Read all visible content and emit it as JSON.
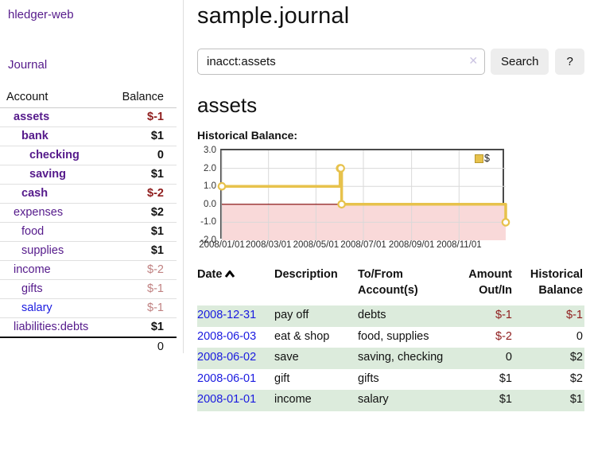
{
  "app": {
    "brand": "hledger-web",
    "nav_journal": "Journal"
  },
  "sidebar": {
    "col_account": "Account",
    "col_balance": "Balance",
    "accounts": [
      {
        "name": "assets",
        "balance": "$-1",
        "level": 1,
        "bold": true,
        "neg": "strong"
      },
      {
        "name": "bank",
        "balance": "$1",
        "level": 2,
        "bold": true,
        "neg": "none"
      },
      {
        "name": "checking",
        "balance": "0",
        "level": 3,
        "bold": true,
        "neg": "none"
      },
      {
        "name": "saving",
        "balance": "$1",
        "level": 3,
        "bold": true,
        "neg": "none"
      },
      {
        "name": "cash",
        "balance": "$-2",
        "level": 2,
        "bold": true,
        "neg": "strong"
      },
      {
        "name": "expenses",
        "balance": "$2",
        "level": 1,
        "bold": false,
        "neg": "none"
      },
      {
        "name": "food",
        "balance": "$1",
        "level": 2,
        "bold": false,
        "neg": "none"
      },
      {
        "name": "supplies",
        "balance": "$1",
        "level": 2,
        "bold": false,
        "neg": "none"
      },
      {
        "name": "income",
        "balance": "$-2",
        "level": 1,
        "bold": false,
        "neg": "faded"
      },
      {
        "name": "gifts",
        "balance": "$-1",
        "level": 2,
        "bold": false,
        "neg": "faded"
      },
      {
        "name": "salary",
        "balance": "$-1",
        "level": 2,
        "bold": false,
        "neg": "faded",
        "link": "blue"
      },
      {
        "name": "liabilities:debts",
        "balance": "$1",
        "level": 1,
        "bold": false,
        "neg": "none"
      }
    ],
    "total": "0"
  },
  "header": {
    "title": "sample.journal"
  },
  "search": {
    "value": "inacct:assets",
    "clear_icon": "✕",
    "button": "Search",
    "help_button": "?"
  },
  "account_page": {
    "heading": "assets",
    "chart_label": "Historical Balance:"
  },
  "chart_data": {
    "type": "line",
    "step": true,
    "title": "Historical Balance:",
    "legend": "$",
    "legend_position": "top-right",
    "x": [
      "2008-01-01",
      "2008-06-01",
      "2008-06-02",
      "2008-06-03",
      "2008-12-31"
    ],
    "values": [
      1,
      2,
      2,
      0,
      -1
    ],
    "x_ticks": [
      "2008/01/01",
      "2008/03/01",
      "2008/05/01",
      "2008/07/01",
      "2008/09/01",
      "2008/11/01"
    ],
    "y_ticks": [
      3.0,
      2.0,
      1.0,
      0.0,
      -1.0,
      -2.0
    ],
    "xlim": [
      "2008-01-01",
      "2008-12-31"
    ],
    "ylim": [
      -2,
      3
    ],
    "grid": true,
    "negative_region_shaded": true
  },
  "register": {
    "headers": {
      "date": "Date",
      "description": "Description",
      "tofrom": "To/From Account(s)",
      "amount": "Amount Out/In",
      "balance": "Historical Balance"
    },
    "rows": [
      {
        "date": "2008-12-31",
        "description": "pay off",
        "accounts": "debts",
        "amount": "$-1",
        "balance": "$-1"
      },
      {
        "date": "2008-06-03",
        "description": "eat & shop",
        "accounts": "food, supplies",
        "amount": "$-2",
        "balance": "0"
      },
      {
        "date": "2008-06-02",
        "description": "save",
        "accounts": "saving, checking",
        "amount": "0",
        "balance": "$2"
      },
      {
        "date": "2008-06-01",
        "description": "gift",
        "accounts": "gifts",
        "amount": "$1",
        "balance": "$2"
      },
      {
        "date": "2008-01-01",
        "description": "income",
        "accounts": "salary",
        "amount": "$1",
        "balance": "$1"
      }
    ]
  },
  "colors": {
    "link-purple": "#551a8b",
    "link-blue": "#1a1ae0",
    "neg-strong": "#8f1d1d",
    "neg-faded": "#c08181",
    "row-green": "#dcebdc",
    "chart-gold": "#e7c24c",
    "chart-gold-dark": "#b9982f",
    "chart-pink": "#f9d9d9",
    "zero-line": "#7e0000",
    "grid": "#d9d9d9",
    "chart-border": "#4a4a4a",
    "divider": "#dddddd",
    "button-bg": "#ededed",
    "clear-x": "#cbc4e2"
  }
}
